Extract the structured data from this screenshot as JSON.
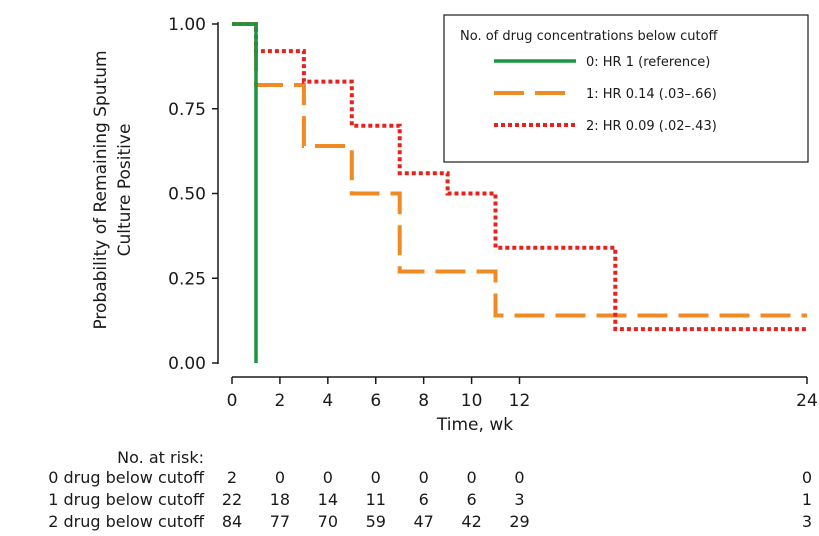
{
  "chart_data": {
    "type": "line",
    "subtype": "kaplan-meier-step",
    "ylabel_line1": "Probability of Remaining Sputum",
    "ylabel_line2": "Culture Positive",
    "xlabel": "Time, wk",
    "xlim": [
      0,
      24
    ],
    "ylim": [
      0,
      1
    ],
    "x_ticks": [
      0,
      2,
      4,
      6,
      8,
      10,
      12,
      24
    ],
    "y_ticks": [
      "0.00",
      "0.25",
      "0.50",
      "0.75",
      "1.00"
    ],
    "grid": false,
    "legend": {
      "title": "No. of drug concentrations below cutoff",
      "placement": "top-right",
      "entries": [
        "0: HR 1 (reference)",
        "1: HR 0.14 (.03–.66)",
        "2: HR 0.09 (.02–.43)"
      ]
    },
    "series": [
      {
        "name": "0: HR 1 (reference)",
        "color": "#1a9641",
        "style": "solid",
        "points": [
          [
            0,
            1.0
          ],
          [
            1,
            1.0
          ],
          [
            1,
            0.0
          ]
        ]
      },
      {
        "name": "1: HR 0.14 (.03–.66)",
        "color": "#f08a24",
        "style": "dashed",
        "points": [
          [
            0,
            1.0
          ],
          [
            1,
            1.0
          ],
          [
            1,
            0.82
          ],
          [
            3,
            0.82
          ],
          [
            3,
            0.64
          ],
          [
            5,
            0.64
          ],
          [
            5,
            0.5
          ],
          [
            7,
            0.5
          ],
          [
            7,
            0.27
          ],
          [
            11,
            0.27
          ],
          [
            11,
            0.14
          ],
          [
            24,
            0.14
          ]
        ]
      },
      {
        "name": "2: HR 0.09 (.02–.43)",
        "color": "#e8221b",
        "style": "dotted",
        "points": [
          [
            0,
            1.0
          ],
          [
            1,
            1.0
          ],
          [
            1,
            0.92
          ],
          [
            3,
            0.92
          ],
          [
            3,
            0.83
          ],
          [
            5,
            0.83
          ],
          [
            5,
            0.7
          ],
          [
            7,
            0.7
          ],
          [
            7,
            0.56
          ],
          [
            9,
            0.56
          ],
          [
            9,
            0.5
          ],
          [
            11,
            0.5
          ],
          [
            11,
            0.34
          ],
          [
            16,
            0.34
          ],
          [
            16,
            0.1
          ],
          [
            24,
            0.1
          ]
        ]
      }
    ],
    "risk_table": {
      "heading": "No. at risk:",
      "time_points": [
        0,
        2,
        4,
        6,
        8,
        10,
        12,
        24
      ],
      "rows": [
        {
          "label": "0 drug below cutoff",
          "values": [
            "2",
            "0",
            "0",
            "0",
            "0",
            "0",
            "0",
            "0"
          ]
        },
        {
          "label": "1 drug below cutoff",
          "values": [
            "22",
            "18",
            "14",
            "11",
            "6",
            "6",
            "3",
            "1"
          ]
        },
        {
          "label": "2 drug below cutoff",
          "values": [
            "84",
            "77",
            "70",
            "59",
            "47",
            "42",
            "29",
            "3"
          ]
        }
      ]
    }
  }
}
